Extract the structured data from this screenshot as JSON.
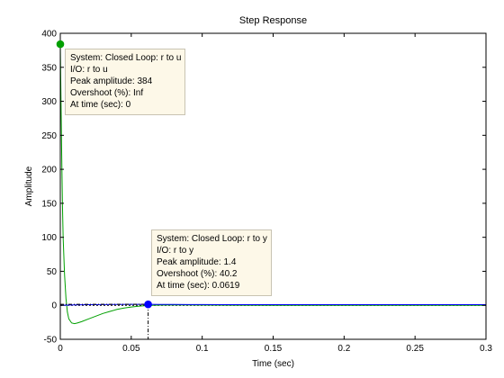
{
  "chart_data": {
    "type": "line",
    "title": "Step Response",
    "xlabel": "Time (sec)",
    "ylabel": "Amplitude",
    "xlim": [
      0,
      0.3
    ],
    "ylim": [
      -50,
      400
    ],
    "xticks": [
      0,
      0.05,
      0.1,
      0.15,
      0.2,
      0.25,
      0.3
    ],
    "yticks": [
      -50,
      0,
      50,
      100,
      150,
      200,
      250,
      300,
      350,
      400
    ],
    "xtick_labels": [
      "0",
      "0.05",
      "0.1",
      "0.15",
      "0.2",
      "0.25",
      "0.3"
    ],
    "ytick_labels": [
      "-50",
      "0",
      "50",
      "100",
      "150",
      "200",
      "250",
      "300",
      "350",
      "400"
    ],
    "grid": false,
    "series": [
      {
        "name": "Closed Loop: r to u",
        "color": "#00a000",
        "x": [
          0,
          0.0005,
          0.001,
          0.0015,
          0.002,
          0.003,
          0.004,
          0.005,
          0.006,
          0.008,
          0.01,
          0.012,
          0.015,
          0.02,
          0.025,
          0.03,
          0.035,
          0.04,
          0.045,
          0.05,
          0.055,
          0.06,
          0.065,
          0.07,
          0.08,
          0.09,
          0.1,
          0.12,
          0.15,
          0.2,
          0.25,
          0.3
        ],
        "y": [
          384,
          300,
          220,
          150,
          100,
          45,
          10,
          -10,
          -20,
          -26,
          -27,
          -26,
          -24,
          -20,
          -16,
          -12,
          -9,
          -6,
          -4,
          -2.5,
          -1.3,
          -0.5,
          0,
          0.3,
          0.5,
          0.4,
          0.3,
          0.1,
          0,
          0,
          0,
          0
        ]
      },
      {
        "name": "Closed Loop: r to y",
        "color": "#0000ff",
        "x": [
          0,
          0.005,
          0.01,
          0.02,
          0.03,
          0.04,
          0.05,
          0.0619,
          0.07,
          0.08,
          0.09,
          0.1,
          0.12,
          0.15,
          0.2,
          0.25,
          0.3
        ],
        "y": [
          0,
          0.3,
          0.6,
          0.95,
          1.15,
          1.3,
          1.38,
          1.4,
          1.35,
          1.25,
          1.15,
          1.08,
          1.02,
          1.0,
          1.0,
          1.0,
          1.0
        ]
      }
    ],
    "markers": [
      {
        "series": 0,
        "x": 0,
        "y": 384,
        "color": "#00a000"
      },
      {
        "series": 1,
        "x": 0.0619,
        "y": 1.4,
        "color": "#0000ff"
      }
    ],
    "steady_state": 0
  },
  "datatips": [
    {
      "lines": [
        "System: Closed Loop: r to u",
        "I/O: r to u",
        "Peak amplitude: 384",
        "Overshoot (%): Inf",
        "At time (sec): 0"
      ]
    },
    {
      "lines": [
        "System: Closed Loop: r to y",
        "I/O: r to y",
        "Peak amplitude: 1.4",
        "Overshoot (%): 40.2",
        "At time (sec): 0.0619"
      ]
    }
  ]
}
